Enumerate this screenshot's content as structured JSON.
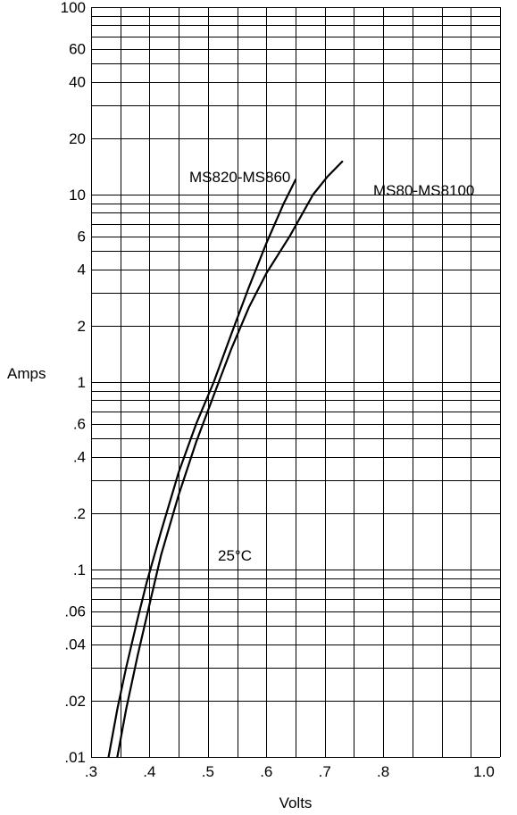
{
  "chart_data": {
    "type": "line",
    "xlabel": "Volts",
    "ylabel": "Amps",
    "xlim": [
      0.3,
      1.0
    ],
    "ylim": [
      0.01,
      100
    ],
    "yscale": "log",
    "grid": true,
    "x_ticks": [
      {
        "value": 0.3,
        "label": ".3"
      },
      {
        "value": 0.4,
        "label": ".4"
      },
      {
        "value": 0.5,
        "label": ".5"
      },
      {
        "value": 0.6,
        "label": ".6"
      },
      {
        "value": 0.7,
        "label": ".7"
      },
      {
        "value": 0.8,
        "label": ".8"
      },
      {
        "value": 1.0,
        "label": "1.0"
      }
    ],
    "y_ticks": [
      {
        "value": 100,
        "label": "100"
      },
      {
        "value": 60,
        "label": "60"
      },
      {
        "value": 40,
        "label": "40"
      },
      {
        "value": 20,
        "label": "20"
      },
      {
        "value": 10,
        "label": "10"
      },
      {
        "value": 6,
        "label": "6"
      },
      {
        "value": 4,
        "label": "4"
      },
      {
        "value": 2,
        "label": "2"
      },
      {
        "value": 1,
        "label": "1"
      },
      {
        "value": 0.6,
        "label": ".6"
      },
      {
        "value": 0.4,
        "label": ".4"
      },
      {
        "value": 0.2,
        "label": ".2"
      },
      {
        "value": 0.1,
        "label": ".1"
      },
      {
        "value": 0.06,
        "label": ".06"
      },
      {
        "value": 0.04,
        "label": ".04"
      },
      {
        "value": 0.02,
        "label": ".02"
      },
      {
        "value": 0.01,
        "label": ".01"
      }
    ],
    "series": [
      {
        "name": "MS820-MS860",
        "x": [
          0.33,
          0.345,
          0.36,
          0.38,
          0.395,
          0.42,
          0.45,
          0.48,
          0.51,
          0.54,
          0.57,
          0.6,
          0.63,
          0.65
        ],
        "y": [
          0.01,
          0.018,
          0.03,
          0.055,
          0.085,
          0.16,
          0.33,
          0.6,
          1.0,
          1.8,
          3.2,
          5.5,
          9.0,
          12.0
        ]
      },
      {
        "name": "MS80-MS8100",
        "x": [
          0.345,
          0.36,
          0.38,
          0.4,
          0.42,
          0.45,
          0.48,
          0.51,
          0.54,
          0.57,
          0.6,
          0.64,
          0.68,
          0.705,
          0.73
        ],
        "y": [
          0.01,
          0.018,
          0.035,
          0.065,
          0.12,
          0.25,
          0.48,
          0.85,
          1.5,
          2.5,
          3.8,
          6.0,
          10.0,
          12.5,
          15.0
        ]
      }
    ],
    "annotations": [
      "25°C"
    ]
  }
}
